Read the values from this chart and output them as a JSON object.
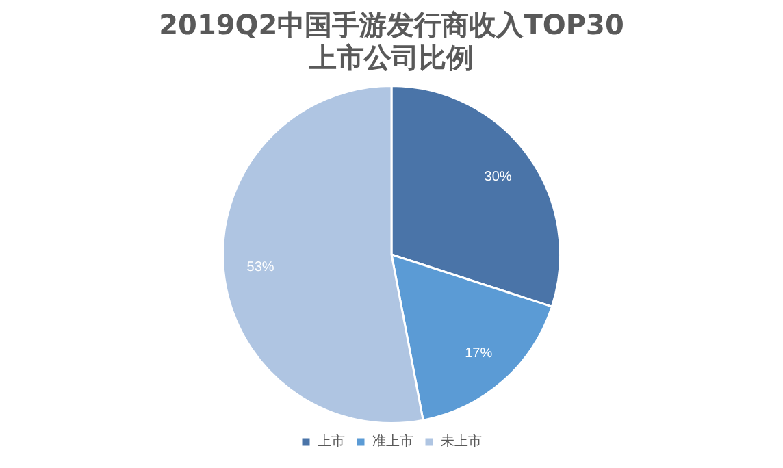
{
  "chart_data": {
    "type": "pie",
    "title": "2019Q2中国手游发行商收入TOP30\n上市公司比例",
    "categories": [
      "上市",
      "准上市",
      "未上市"
    ],
    "values": [
      30,
      17,
      53
    ],
    "colors": [
      "#4a74a8",
      "#5b9bd5",
      "#afc5e2"
    ],
    "value_labels": [
      "30%",
      "17%",
      "53%"
    ],
    "legend": "bottom"
  }
}
